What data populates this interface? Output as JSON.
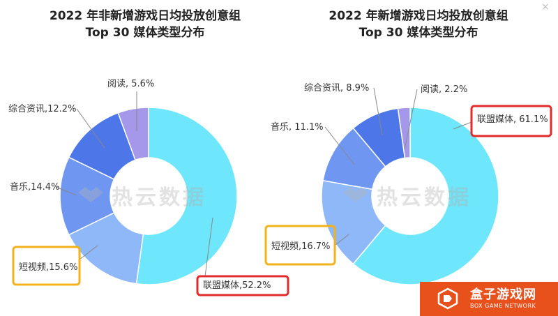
{
  "chart_data": [
    {
      "type": "pie",
      "title": "2022 年非新增游戏日均投放创意组\nTop 30 媒体类型分布",
      "slices": [
        {
          "label": "联盟媒体,52.2%",
          "value": 52.2,
          "color": "#6ee6fb",
          "highlight": "red"
        },
        {
          "label": "短视频,15.6%",
          "value": 15.6,
          "color": "#8fb8f8",
          "highlight": "orange"
        },
        {
          "label": "音乐,14.4%",
          "value": 14.4,
          "color": "#6f97f2",
          "highlight": ""
        },
        {
          "label": "综合资讯,12.2%",
          "value": 12.2,
          "color": "#4d76e8",
          "highlight": ""
        },
        {
          "label": "阅读, 5.6%",
          "value": 5.6,
          "color": "#a598ea",
          "highlight": ""
        }
      ]
    },
    {
      "type": "pie",
      "title": "2022 年新增游戏日均投放创意组\nTop 30 媒体类型分布",
      "slices": [
        {
          "label": "联盟媒体, 61.1%",
          "value": 61.1,
          "color": "#6ee6fb",
          "highlight": "red"
        },
        {
          "label": "短视频,16.7%",
          "value": 16.7,
          "color": "#8fb8f8",
          "highlight": "orange"
        },
        {
          "label": "音乐, 11.1%",
          "value": 11.1,
          "color": "#6f97f2",
          "highlight": ""
        },
        {
          "label": "综合资讯, 8.9%",
          "value": 8.9,
          "color": "#4d76e8",
          "highlight": ""
        },
        {
          "label": "阅读, 2.2%",
          "value": 2.2,
          "color": "#a598ea",
          "highlight": ""
        }
      ]
    }
  ],
  "watermark": "热云数据",
  "logo": {
    "name_cn": "盒子游戏网",
    "name_en": "BOX GAME NETWORK",
    "bg_color": "#e8501c"
  },
  "corner_glyph": "×"
}
